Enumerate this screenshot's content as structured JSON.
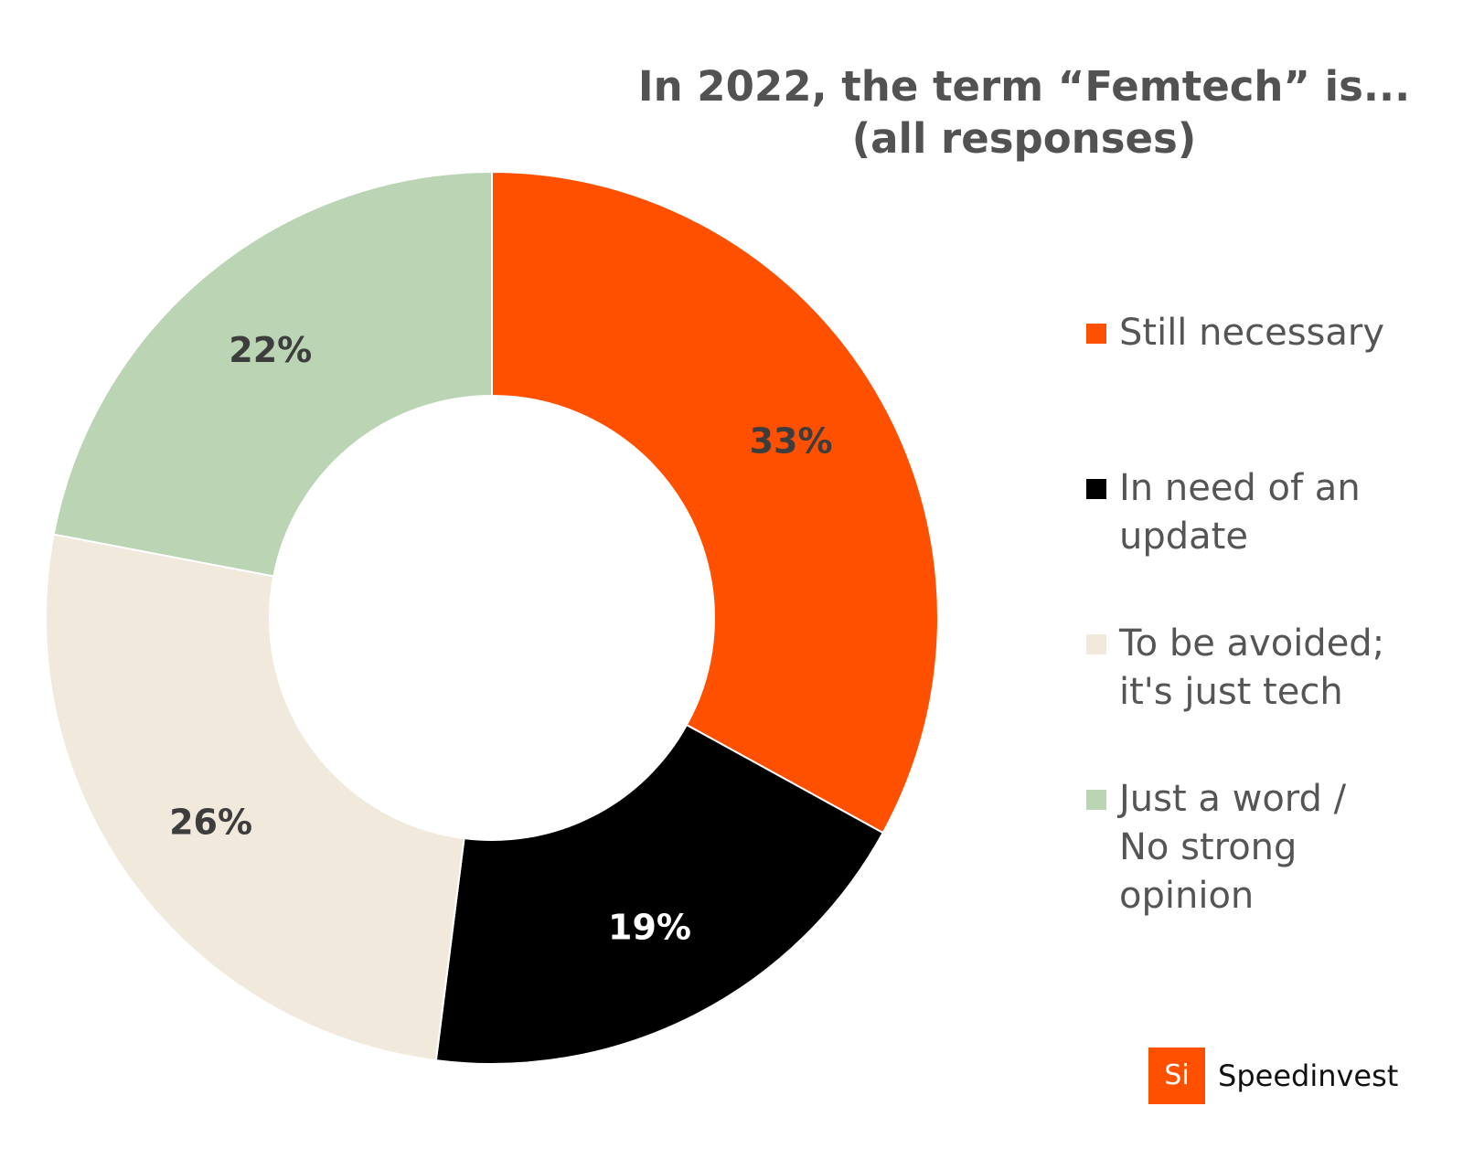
{
  "title": {
    "line1": "In 2022, the term “Femtech” is...",
    "line2": "(all responses)"
  },
  "chart_data": {
    "type": "pie",
    "donut": true,
    "title": "In 2022, the term “Femtech” is... (all responses)",
    "legend_position": "right",
    "slices": [
      {
        "label": "Still necessary",
        "value": 33,
        "display": "33%",
        "color": "#ff5000",
        "label_color": "#3d3d3d"
      },
      {
        "label": "In need of an update",
        "value": 19,
        "display": "19%",
        "color": "#000000",
        "label_color": "#ffffff"
      },
      {
        "label": "To be avoided; it's just tech",
        "value": 26,
        "display": "26%",
        "color": "#f0e9dc",
        "label_color": "#3d3d3d"
      },
      {
        "label": "Just a word / No strong opinion",
        "value": 22,
        "display": "22%",
        "color": "#bbd4b4",
        "label_color": "#3d3d3d"
      }
    ]
  },
  "brand": {
    "logo_mark": "Si",
    "name": "Speedinvest",
    "color": "#ff5000"
  }
}
